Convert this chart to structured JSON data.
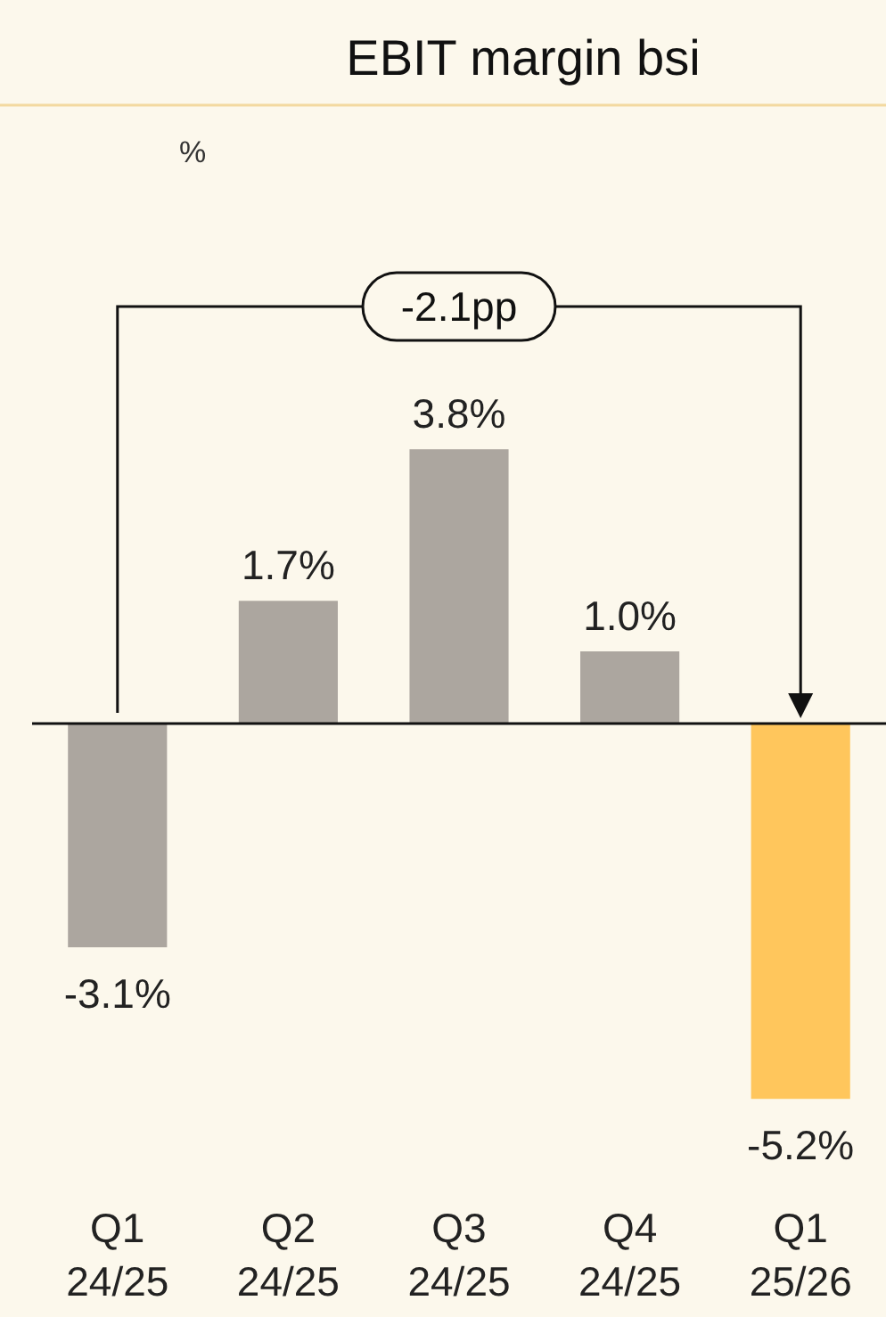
{
  "chart_data": {
    "type": "bar",
    "title": "EBIT margin bsi",
    "categories": [
      "Q1 24/25",
      "Q2 24/25",
      "Q3 24/25",
      "Q4 24/25",
      "Q1 25/26"
    ],
    "values": [
      -3.1,
      1.7,
      3.8,
      1.0,
      -5.2
    ],
    "colors": [
      "#aca69f",
      "#aca69f",
      "#aca69f",
      "#aca69f",
      "#ffc65c"
    ],
    "value_labels": [
      "-3.1%",
      "1.7%",
      "3.8%",
      "1.0%",
      "-5.2%"
    ],
    "annotations": [
      "%",
      "-2.1pp"
    ]
  }
}
